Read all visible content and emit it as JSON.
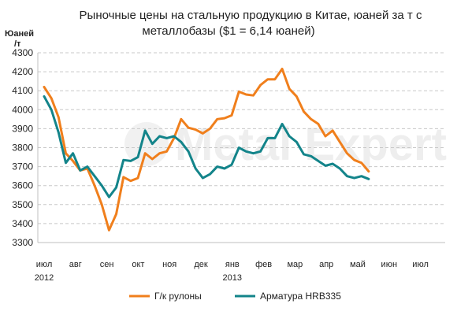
{
  "chart_data": {
    "type": "line",
    "title": "Рыночные цены на стальную продукцию в Китае, юаней за т с металлобазы ($1 = 6,14 юаней)",
    "title_lines": [
      "Рыночные цены на стальную продукцию в Китае, юаней за т с",
      "металлобазы ($1 = 6,14 юаней)"
    ],
    "ylabel_lines": [
      "Юаней",
      "/т"
    ],
    "ylabel": "Юаней /т",
    "ylim": [
      3300,
      4300
    ],
    "yticks": [
      3300,
      3400,
      3500,
      3600,
      3700,
      3800,
      3900,
      4000,
      4100,
      4200,
      4300
    ],
    "ytick_labels": [
      "3300",
      "3400",
      "3500",
      "3600",
      "3700",
      "3800",
      "3900",
      "4000",
      "4100",
      "4200",
      "4300"
    ],
    "x_months": [
      "июл",
      "авг",
      "сен",
      "окт",
      "ноя",
      "дек",
      "янв",
      "фев",
      "мар",
      "апр",
      "май",
      "июн",
      "июл"
    ],
    "x_years": [
      {
        "label": "2012",
        "month_index": 0
      },
      {
        "label": "2013",
        "month_index": 6
      }
    ],
    "x_range_months": [
      0,
      12.4
    ],
    "grid": "horizontal dashed",
    "legend_position": "bottom",
    "series": [
      {
        "name": "Г/к рулоны",
        "color": "#f07f1c",
        "x": [
          0.0,
          0.23,
          0.46,
          0.69,
          0.92,
          1.15,
          1.38,
          1.61,
          1.84,
          2.07,
          2.3,
          2.53,
          2.76,
          2.99,
          3.22,
          3.45,
          3.68,
          3.91,
          4.14,
          4.37,
          4.6,
          4.83,
          5.06,
          5.29,
          5.52,
          5.75,
          5.98,
          6.21,
          6.44,
          6.67,
          6.9,
          7.13,
          7.36,
          7.59,
          7.82,
          8.05,
          8.28,
          8.51,
          8.74,
          8.97,
          9.2,
          9.43,
          9.66,
          9.89,
          10.12,
          10.35
        ],
        "values": [
          4120,
          4060,
          3960,
          3770,
          3730,
          3680,
          3690,
          3600,
          3500,
          3365,
          3450,
          3645,
          3625,
          3640,
          3770,
          3740,
          3770,
          3780,
          3850,
          3950,
          3905,
          3895,
          3875,
          3900,
          3950,
          3955,
          3970,
          4095,
          4080,
          4075,
          4130,
          4160,
          4160,
          4215,
          4110,
          4070,
          3990,
          3950,
          3925,
          3860,
          3890,
          3830,
          3770,
          3735,
          3720,
          3675
        ]
      },
      {
        "name": "Арматура HRB335",
        "color": "#13848a",
        "x": [
          0.0,
          0.23,
          0.46,
          0.69,
          0.92,
          1.15,
          1.38,
          1.61,
          1.84,
          2.07,
          2.3,
          2.53,
          2.76,
          2.99,
          3.22,
          3.45,
          3.68,
          3.91,
          4.14,
          4.37,
          4.6,
          4.83,
          5.06,
          5.29,
          5.52,
          5.75,
          5.98,
          6.21,
          6.44,
          6.67,
          6.9,
          7.13,
          7.36,
          7.59,
          7.82,
          8.05,
          8.28,
          8.51,
          8.74,
          8.97,
          9.2,
          9.43,
          9.66,
          9.89,
          10.12,
          10.35
        ],
        "values": [
          4070,
          4000,
          3880,
          3720,
          3770,
          3680,
          3700,
          3650,
          3600,
          3540,
          3590,
          3735,
          3730,
          3750,
          3890,
          3820,
          3860,
          3850,
          3860,
          3830,
          3780,
          3690,
          3640,
          3660,
          3700,
          3690,
          3710,
          3800,
          3780,
          3770,
          3780,
          3850,
          3850,
          3925,
          3860,
          3830,
          3765,
          3755,
          3730,
          3705,
          3715,
          3690,
          3650,
          3640,
          3650,
          3635
        ]
      }
    ]
  },
  "watermark": {
    "text": "Metal Expert",
    "kind": "logo watermark"
  },
  "colors": {
    "background": "#ffffff",
    "axis": "#bfbfbf",
    "grid": "#c8c8c8",
    "text": "#222222"
  }
}
